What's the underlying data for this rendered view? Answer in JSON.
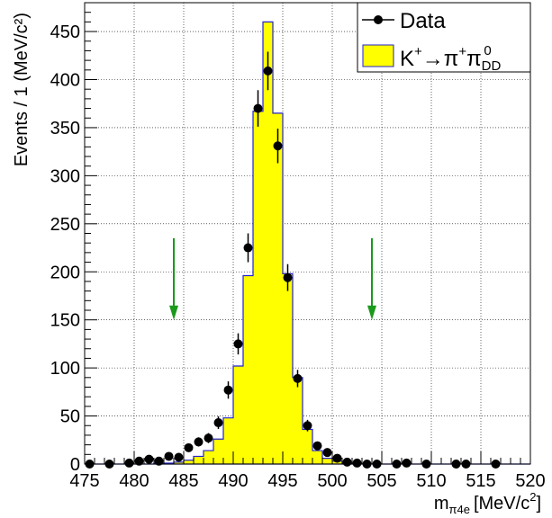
{
  "chart_data": {
    "type": "bar",
    "xlabel_main": "m",
    "xlabel_sub": "π4e",
    "xlabel_unit": "[MeV/c",
    "xlabel_unit_sup": "2",
    "xlabel_unit_close": "]",
    "ylabel": "Events / 1 (MeV/c²)",
    "xlim": [
      475,
      520
    ],
    "ylim": [
      0,
      480
    ],
    "xticks": [
      475,
      480,
      485,
      490,
      495,
      500,
      505,
      510,
      515,
      520
    ],
    "yticks": [
      0,
      50,
      100,
      150,
      200,
      250,
      300,
      350,
      400,
      450
    ],
    "grid": true,
    "legend_position": "top-right",
    "legend": {
      "data_label": "Data",
      "mc_label_K": "K",
      "mc_label_Ksup": "+",
      "mc_label_arrow": "→π",
      "mc_label_pisup": "+",
      "mc_label_pi": "π",
      "mc_label_pisub": "DD",
      "mc_label_pisup2": "0"
    },
    "colors": {
      "mc_fill": "#ffff00",
      "mc_line": "#2222cc",
      "arrows": "#1a9a1a",
      "data": "#000000"
    },
    "mc_histogram": {
      "name": "K+→π+π0DD",
      "bin_width": 1,
      "bins": [
        {
          "x": 475,
          "y": 0
        },
        {
          "x": 476,
          "y": 0
        },
        {
          "x": 477,
          "y": 0
        },
        {
          "x": 478,
          "y": 0
        },
        {
          "x": 479,
          "y": 0
        },
        {
          "x": 480,
          "y": 0
        },
        {
          "x": 481,
          "y": 0
        },
        {
          "x": 482,
          "y": 1
        },
        {
          "x": 483,
          "y": 1
        },
        {
          "x": 484,
          "y": 2
        },
        {
          "x": 485,
          "y": 4
        },
        {
          "x": 486,
          "y": 8
        },
        {
          "x": 487,
          "y": 14
        },
        {
          "x": 488,
          "y": 26
        },
        {
          "x": 489,
          "y": 48
        },
        {
          "x": 490,
          "y": 102
        },
        {
          "x": 491,
          "y": 196
        },
        {
          "x": 492,
          "y": 367
        },
        {
          "x": 493,
          "y": 460
        },
        {
          "x": 494,
          "y": 365
        },
        {
          "x": 495,
          "y": 198
        },
        {
          "x": 496,
          "y": 90
        },
        {
          "x": 497,
          "y": 36
        },
        {
          "x": 498,
          "y": 14
        },
        {
          "x": 499,
          "y": 6
        },
        {
          "x": 500,
          "y": 3
        },
        {
          "x": 501,
          "y": 1
        },
        {
          "x": 502,
          "y": 1
        },
        {
          "x": 503,
          "y": 0
        },
        {
          "x": 504,
          "y": 0
        },
        {
          "x": 505,
          "y": 0
        },
        {
          "x": 506,
          "y": 0
        },
        {
          "x": 507,
          "y": 0
        },
        {
          "x": 508,
          "y": 0
        },
        {
          "x": 509,
          "y": 0
        },
        {
          "x": 510,
          "y": 0
        },
        {
          "x": 511,
          "y": 0
        },
        {
          "x": 512,
          "y": 0
        },
        {
          "x": 513,
          "y": 0
        },
        {
          "x": 514,
          "y": 0
        },
        {
          "x": 515,
          "y": 0
        },
        {
          "x": 516,
          "y": 0
        },
        {
          "x": 517,
          "y": 0
        },
        {
          "x": 518,
          "y": 0
        },
        {
          "x": 519,
          "y": 0
        }
      ]
    },
    "data_points": {
      "name": "Data",
      "points": [
        {
          "x": 475.5,
          "y": 0
        },
        {
          "x": 477.5,
          "y": 0
        },
        {
          "x": 479.5,
          "y": 1
        },
        {
          "x": 480.5,
          "y": 3
        },
        {
          "x": 481.5,
          "y": 5
        },
        {
          "x": 482.5,
          "y": 3
        },
        {
          "x": 483.5,
          "y": 8
        },
        {
          "x": 484.5,
          "y": 7
        },
        {
          "x": 485.5,
          "y": 17
        },
        {
          "x": 486.5,
          "y": 23
        },
        {
          "x": 487.5,
          "y": 27
        },
        {
          "x": 488.5,
          "y": 43
        },
        {
          "x": 489.5,
          "y": 77,
          "err": 9
        },
        {
          "x": 490.5,
          "y": 125,
          "err": 11
        },
        {
          "x": 491.5,
          "y": 225,
          "err": 15
        },
        {
          "x": 492.5,
          "y": 370,
          "err": 19
        },
        {
          "x": 493.5,
          "y": 409,
          "err": 20
        },
        {
          "x": 494.5,
          "y": 331,
          "err": 18
        },
        {
          "x": 495.5,
          "y": 194,
          "err": 14
        },
        {
          "x": 496.5,
          "y": 89,
          "err": 9
        },
        {
          "x": 497.5,
          "y": 40,
          "err": 6
        },
        {
          "x": 498.5,
          "y": 19
        },
        {
          "x": 499.5,
          "y": 12
        },
        {
          "x": 500.5,
          "y": 6
        },
        {
          "x": 501.5,
          "y": 2
        },
        {
          "x": 502.5,
          "y": 1
        },
        {
          "x": 503.5,
          "y": 0
        },
        {
          "x": 504.5,
          "y": 0
        },
        {
          "x": 506.5,
          "y": 0
        },
        {
          "x": 507.5,
          "y": 1
        },
        {
          "x": 509.5,
          "y": 0
        },
        {
          "x": 512.5,
          "y": 0
        },
        {
          "x": 513.5,
          "y": 0
        },
        {
          "x": 516.5,
          "y": 0
        }
      ]
    },
    "cut_arrows": [
      {
        "x": 484,
        "y_top": 235,
        "y_bottom": 150
      },
      {
        "x": 504,
        "y_top": 235,
        "y_bottom": 150
      }
    ]
  }
}
